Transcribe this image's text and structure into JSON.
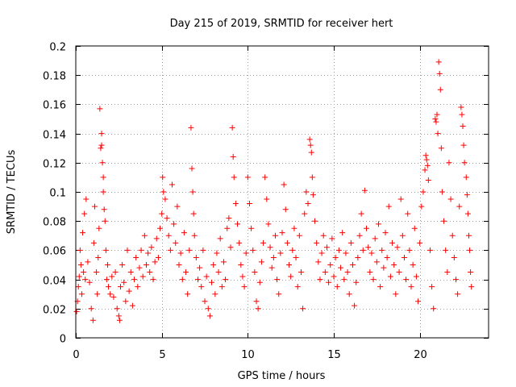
{
  "chart_data": {
    "type": "scatter",
    "title": "Day 215 of 2019, SRMTID for receiver hert",
    "xlabel": "GPS time / hours",
    "ylabel": "SRMTID / TECUs",
    "xlim": [
      0,
      24
    ],
    "ylim": [
      0,
      0.2
    ],
    "xticks": [
      0,
      5,
      10,
      15,
      20
    ],
    "xtick_labels": [
      "0",
      "5",
      "10",
      "15",
      "20"
    ],
    "yticks": [
      0,
      0.02,
      0.04,
      0.06,
      0.08,
      0.1,
      0.12,
      0.14,
      0.16,
      0.18,
      0.2
    ],
    "ytick_labels": [
      "0",
      "0.02",
      "0.04",
      "0.06",
      "0.08",
      "0.1",
      "0.12",
      "0.14",
      "0.16",
      "0.18",
      "0.2"
    ],
    "grid": true,
    "marker": "+",
    "color": "#ff0000",
    "series": [
      {
        "name": "SRMTID",
        "points": [
          [
            0.05,
            0.018
          ],
          [
            0.1,
            0.025
          ],
          [
            0.15,
            0.035
          ],
          [
            0.2,
            0.042
          ],
          [
            0.25,
            0.06
          ],
          [
            0.3,
            0.05
          ],
          [
            0.35,
            0.03
          ],
          [
            0.4,
            0.072
          ],
          [
            0.45,
            0.045
          ],
          [
            0.5,
            0.085
          ],
          [
            0.55,
            0.04
          ],
          [
            0.6,
            0.095
          ],
          [
            0.7,
            0.052
          ],
          [
            0.8,
            0.038
          ],
          [
            0.9,
            0.02
          ],
          [
            1.0,
            0.012
          ],
          [
            1.05,
            0.065
          ],
          [
            1.1,
            0.09
          ],
          [
            1.2,
            0.045
          ],
          [
            1.25,
            0.03
          ],
          [
            1.3,
            0.055
          ],
          [
            1.35,
            0.075
          ],
          [
            1.4,
            0.157
          ],
          [
            1.45,
            0.13
          ],
          [
            1.5,
            0.132
          ],
          [
            1.5,
            0.14
          ],
          [
            1.55,
            0.12
          ],
          [
            1.6,
            0.11
          ],
          [
            1.6,
            0.1
          ],
          [
            1.65,
            0.088
          ],
          [
            1.7,
            0.08
          ],
          [
            1.75,
            0.06
          ],
          [
            1.8,
            0.04
          ],
          [
            1.85,
            0.05
          ],
          [
            1.9,
            0.035
          ],
          [
            2.0,
            0.03
          ],
          [
            2.1,
            0.042
          ],
          [
            2.2,
            0.028
          ],
          [
            2.3,
            0.045
          ],
          [
            2.4,
            0.02
          ],
          [
            2.5,
            0.015
          ],
          [
            2.55,
            0.012
          ],
          [
            2.6,
            0.035
          ],
          [
            2.7,
            0.05
          ],
          [
            2.8,
            0.038
          ],
          [
            2.9,
            0.025
          ],
          [
            3.0,
            0.06
          ],
          [
            3.1,
            0.032
          ],
          [
            3.2,
            0.045
          ],
          [
            3.3,
            0.022
          ],
          [
            3.4,
            0.04
          ],
          [
            3.5,
            0.055
          ],
          [
            3.6,
            0.035
          ],
          [
            3.7,
            0.048
          ],
          [
            3.8,
            0.06
          ],
          [
            3.9,
            0.042
          ],
          [
            4.0,
            0.07
          ],
          [
            4.1,
            0.05
          ],
          [
            4.2,
            0.058
          ],
          [
            4.3,
            0.045
          ],
          [
            4.4,
            0.062
          ],
          [
            4.5,
            0.04
          ],
          [
            4.6,
            0.052
          ],
          [
            4.7,
            0.068
          ],
          [
            4.8,
            0.055
          ],
          [
            4.9,
            0.075
          ],
          [
            5.0,
            0.085
          ],
          [
            5.05,
            0.11
          ],
          [
            5.1,
            0.1
          ],
          [
            5.2,
            0.095
          ],
          [
            5.3,
            0.082
          ],
          [
            5.4,
            0.07
          ],
          [
            5.5,
            0.06
          ],
          [
            5.6,
            0.105
          ],
          [
            5.7,
            0.078
          ],
          [
            5.8,
            0.065
          ],
          [
            5.9,
            0.09
          ],
          [
            6.0,
            0.05
          ],
          [
            6.1,
            0.058
          ],
          [
            6.2,
            0.04
          ],
          [
            6.3,
            0.072
          ],
          [
            6.4,
            0.045
          ],
          [
            6.5,
            0.03
          ],
          [
            6.6,
            0.06
          ],
          [
            6.7,
            0.144
          ],
          [
            6.75,
            0.116
          ],
          [
            6.8,
            0.1
          ],
          [
            6.85,
            0.085
          ],
          [
            6.9,
            0.07
          ],
          [
            7.0,
            0.055
          ],
          [
            7.1,
            0.04
          ],
          [
            7.2,
            0.048
          ],
          [
            7.3,
            0.035
          ],
          [
            7.4,
            0.06
          ],
          [
            7.5,
            0.025
          ],
          [
            7.6,
            0.042
          ],
          [
            7.7,
            0.02
          ],
          [
            7.8,
            0.015
          ],
          [
            7.9,
            0.038
          ],
          [
            8.0,
            0.05
          ],
          [
            8.1,
            0.03
          ],
          [
            8.2,
            0.058
          ],
          [
            8.3,
            0.045
          ],
          [
            8.4,
            0.068
          ],
          [
            8.5,
            0.035
          ],
          [
            8.6,
            0.052
          ],
          [
            8.7,
            0.04
          ],
          [
            8.8,
            0.075
          ],
          [
            8.9,
            0.082
          ],
          [
            9.0,
            0.062
          ],
          [
            9.1,
            0.144
          ],
          [
            9.15,
            0.124
          ],
          [
            9.2,
            0.11
          ],
          [
            9.3,
            0.092
          ],
          [
            9.4,
            0.078
          ],
          [
            9.5,
            0.065
          ],
          [
            9.6,
            0.05
          ],
          [
            9.7,
            0.042
          ],
          [
            9.8,
            0.035
          ],
          [
            9.9,
            0.058
          ],
          [
            10.0,
            0.11
          ],
          [
            10.1,
            0.092
          ],
          [
            10.2,
            0.075
          ],
          [
            10.3,
            0.06
          ],
          [
            10.4,
            0.045
          ],
          [
            10.5,
            0.025
          ],
          [
            10.6,
            0.02
          ],
          [
            10.7,
            0.038
          ],
          [
            10.8,
            0.052
          ],
          [
            10.9,
            0.065
          ],
          [
            11.0,
            0.11
          ],
          [
            11.1,
            0.095
          ],
          [
            11.2,
            0.078
          ],
          [
            11.3,
            0.062
          ],
          [
            11.4,
            0.048
          ],
          [
            11.5,
            0.055
          ],
          [
            11.6,
            0.07
          ],
          [
            11.7,
            0.04
          ],
          [
            11.8,
            0.03
          ],
          [
            11.9,
            0.058
          ],
          [
            12.0,
            0.072
          ],
          [
            12.1,
            0.105
          ],
          [
            12.2,
            0.088
          ],
          [
            12.3,
            0.065
          ],
          [
            12.4,
            0.05
          ],
          [
            12.5,
            0.042
          ],
          [
            12.6,
            0.06
          ],
          [
            12.7,
            0.075
          ],
          [
            12.8,
            0.055
          ],
          [
            12.9,
            0.035
          ],
          [
            13.0,
            0.07
          ],
          [
            13.1,
            0.045
          ],
          [
            13.2,
            0.02
          ],
          [
            13.3,
            0.085
          ],
          [
            13.4,
            0.1
          ],
          [
            13.5,
            0.092
          ],
          [
            13.6,
            0.136
          ],
          [
            13.65,
            0.132
          ],
          [
            13.7,
            0.127
          ],
          [
            13.75,
            0.11
          ],
          [
            13.8,
            0.098
          ],
          [
            13.9,
            0.08
          ],
          [
            14.0,
            0.065
          ],
          [
            14.1,
            0.052
          ],
          [
            14.2,
            0.04
          ],
          [
            14.3,
            0.058
          ],
          [
            14.4,
            0.07
          ],
          [
            14.5,
            0.045
          ],
          [
            14.6,
            0.062
          ],
          [
            14.7,
            0.038
          ],
          [
            14.8,
            0.05
          ],
          [
            14.9,
            0.068
          ],
          [
            15.0,
            0.042
          ],
          [
            15.1,
            0.055
          ],
          [
            15.2,
            0.035
          ],
          [
            15.3,
            0.06
          ],
          [
            15.4,
            0.048
          ],
          [
            15.5,
            0.072
          ],
          [
            15.6,
            0.04
          ],
          [
            15.7,
            0.058
          ],
          [
            15.8,
            0.045
          ],
          [
            15.9,
            0.03
          ],
          [
            16.0,
            0.065
          ],
          [
            16.1,
            0.05
          ],
          [
            16.2,
            0.022
          ],
          [
            16.3,
            0.038
          ],
          [
            16.4,
            0.055
          ],
          [
            16.5,
            0.07
          ],
          [
            16.6,
            0.085
          ],
          [
            16.7,
            0.06
          ],
          [
            16.8,
            0.101
          ],
          [
            16.9,
            0.075
          ],
          [
            17.0,
            0.062
          ],
          [
            17.1,
            0.045
          ],
          [
            17.2,
            0.058
          ],
          [
            17.3,
            0.04
          ],
          [
            17.4,
            0.068
          ],
          [
            17.5,
            0.052
          ],
          [
            17.6,
            0.078
          ],
          [
            17.7,
            0.035
          ],
          [
            17.8,
            0.06
          ],
          [
            17.9,
            0.048
          ],
          [
            18.0,
            0.072
          ],
          [
            18.1,
            0.055
          ],
          [
            18.2,
            0.09
          ],
          [
            18.3,
            0.042
          ],
          [
            18.4,
            0.065
          ],
          [
            18.5,
            0.05
          ],
          [
            18.6,
            0.03
          ],
          [
            18.7,
            0.062
          ],
          [
            18.8,
            0.045
          ],
          [
            18.9,
            0.095
          ],
          [
            19.0,
            0.07
          ],
          [
            19.1,
            0.055
          ],
          [
            19.2,
            0.04
          ],
          [
            19.3,
            0.085
          ],
          [
            19.4,
            0.06
          ],
          [
            19.5,
            0.035
          ],
          [
            19.6,
            0.05
          ],
          [
            19.7,
            0.075
          ],
          [
            19.8,
            0.042
          ],
          [
            19.9,
            0.025
          ],
          [
            20.0,
            0.065
          ],
          [
            20.1,
            0.09
          ],
          [
            20.2,
            0.1
          ],
          [
            20.3,
            0.115
          ],
          [
            20.35,
            0.125
          ],
          [
            20.4,
            0.122
          ],
          [
            20.45,
            0.118
          ],
          [
            20.5,
            0.108
          ],
          [
            20.6,
            0.06
          ],
          [
            20.7,
            0.035
          ],
          [
            20.8,
            0.02
          ],
          [
            20.9,
            0.15
          ],
          [
            20.95,
            0.148
          ],
          [
            21.0,
            0.153
          ],
          [
            21.05,
            0.14
          ],
          [
            21.1,
            0.189
          ],
          [
            21.15,
            0.181
          ],
          [
            21.2,
            0.17
          ],
          [
            21.25,
            0.13
          ],
          [
            21.3,
            0.1
          ],
          [
            21.4,
            0.08
          ],
          [
            21.5,
            0.06
          ],
          [
            21.6,
            0.045
          ],
          [
            21.7,
            0.12
          ],
          [
            21.8,
            0.095
          ],
          [
            21.9,
            0.07
          ],
          [
            22.0,
            0.055
          ],
          [
            22.1,
            0.04
          ],
          [
            22.2,
            0.03
          ],
          [
            22.3,
            0.09
          ],
          [
            22.4,
            0.158
          ],
          [
            22.45,
            0.153
          ],
          [
            22.5,
            0.145
          ],
          [
            22.55,
            0.132
          ],
          [
            22.6,
            0.12
          ],
          [
            22.7,
            0.11
          ],
          [
            22.75,
            0.098
          ],
          [
            22.8,
            0.085
          ],
          [
            22.85,
            0.07
          ],
          [
            22.9,
            0.06
          ],
          [
            22.95,
            0.045
          ],
          [
            23.0,
            0.035
          ]
        ]
      }
    ]
  }
}
